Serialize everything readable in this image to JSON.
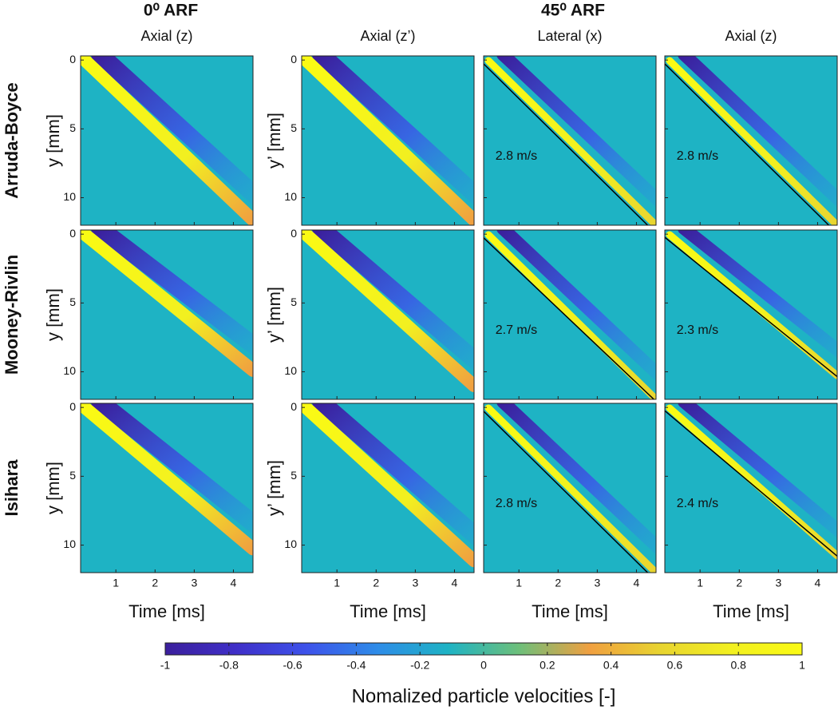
{
  "group_titles": [
    "0⁰ ARF",
    "45⁰ ARF"
  ],
  "row_labels": [
    "Arruda-Boyce",
    "Mooney-Rivlin",
    "Isihara"
  ],
  "chart_data": [
    {
      "type": "heatmap",
      "title": "Axial (z)",
      "ylabel": "y [mm]",
      "xlim": [
        0.1,
        4.5
      ],
      "ylim": [
        -0.3,
        12
      ],
      "y_reversed": true,
      "xticks": [
        1,
        2,
        3,
        4
      ],
      "yticks": [
        0,
        5,
        10
      ],
      "ytick_labels": true
    },
    {
      "type": "heatmap",
      "title": "Axial (z’)",
      "ylabel": "y’ [mm]",
      "xlim": [
        0.1,
        4.5
      ],
      "ylim": [
        -0.3,
        12
      ],
      "y_reversed": true,
      "xticks": [
        1,
        2,
        3,
        4
      ],
      "yticks": [
        0,
        5,
        10
      ],
      "ytick_labels": true
    },
    {
      "type": "heatmap",
      "title": "Lateral (x)",
      "xlim": [
        0.1,
        4.5
      ],
      "ylim": [
        -0.3,
        12
      ],
      "y_reversed": true,
      "xticks": [
        1,
        2,
        3,
        4
      ],
      "yticks": [
        0,
        5,
        10
      ],
      "ytick_labels": false,
      "annotation": {
        "value": 2.8,
        "label": "2.8 m/s"
      }
    },
    {
      "type": "heatmap",
      "title": "Axial (z)",
      "xlim": [
        0.1,
        4.5
      ],
      "ylim": [
        -0.3,
        12
      ],
      "y_reversed": true,
      "xticks": [
        1,
        2,
        3,
        4
      ],
      "yticks": [
        0,
        5,
        10
      ],
      "ytick_labels": false,
      "annotation": {
        "value": 2.8,
        "label": "2.8 m/s"
      }
    },
    {
      "type": "heatmap",
      "ylabel": "y [mm]",
      "xlim": [
        0.1,
        4.5
      ],
      "ylim": [
        -0.3,
        12
      ],
      "y_reversed": true,
      "xticks": [
        1,
        2,
        3,
        4
      ],
      "yticks": [
        0,
        5,
        10
      ],
      "ytick_labels": true
    },
    {
      "type": "heatmap",
      "ylabel": "y’ [mm]",
      "xlim": [
        0.1,
        4.5
      ],
      "ylim": [
        -0.3,
        12
      ],
      "y_reversed": true,
      "xticks": [
        1,
        2,
        3,
        4
      ],
      "yticks": [
        0,
        5,
        10
      ],
      "ytick_labels": true
    },
    {
      "type": "heatmap",
      "xlim": [
        0.1,
        4.5
      ],
      "ylim": [
        -0.3,
        12
      ],
      "y_reversed": true,
      "xticks": [
        1,
        2,
        3,
        4
      ],
      "yticks": [
        0,
        5,
        10
      ],
      "ytick_labels": false,
      "annotation": {
        "value": 2.7,
        "label": "2.7 m/s"
      }
    },
    {
      "type": "heatmap",
      "xlim": [
        0.1,
        4.5
      ],
      "ylim": [
        -0.3,
        12
      ],
      "y_reversed": true,
      "xticks": [
        1,
        2,
        3,
        4
      ],
      "yticks": [
        0,
        5,
        10
      ],
      "ytick_labels": false,
      "annotation": {
        "value": 2.3,
        "label": "2.3 m/s"
      }
    },
    {
      "type": "heatmap",
      "ylabel": "y [mm]",
      "xlabel": "Time [ms]",
      "xlim": [
        0.1,
        4.5
      ],
      "ylim": [
        -0.3,
        12
      ],
      "y_reversed": true,
      "xticks": [
        1,
        2,
        3,
        4
      ],
      "yticks": [
        0,
        5,
        10
      ],
      "ytick_labels": true
    },
    {
      "type": "heatmap",
      "ylabel": "y’ [mm]",
      "xlabel": "Time [ms]",
      "xlim": [
        0.1,
        4.5
      ],
      "ylim": [
        -0.3,
        12
      ],
      "y_reversed": true,
      "xticks": [
        1,
        2,
        3,
        4
      ],
      "yticks": [
        0,
        5,
        10
      ],
      "ytick_labels": true
    },
    {
      "type": "heatmap",
      "xlabel": "Time [ms]",
      "xlim": [
        0.1,
        4.5
      ],
      "ylim": [
        -0.3,
        12
      ],
      "y_reversed": true,
      "xticks": [
        1,
        2,
        3,
        4
      ],
      "yticks": [
        0,
        5,
        10
      ],
      "ytick_labels": false,
      "annotation": {
        "value": 2.8,
        "label": "2.8 m/s"
      }
    },
    {
      "type": "heatmap",
      "xlabel": "Time [ms]",
      "xlim": [
        0.1,
        4.5
      ],
      "ylim": [
        -0.3,
        12
      ],
      "y_reversed": true,
      "xticks": [
        1,
        2,
        3,
        4
      ],
      "yticks": [
        0,
        5,
        10
      ],
      "ytick_labels": false,
      "annotation": {
        "value": 2.4,
        "label": "2.4 m/s"
      }
    }
  ],
  "colorbar": {
    "label": "Nomalized particle velocities [-]",
    "lim": [
      -1,
      1
    ],
    "ticks": [
      -1,
      -0.8,
      -0.6,
      -0.4,
      -0.2,
      0,
      0.2,
      0.4,
      0.6,
      0.8,
      1
    ],
    "colormap": [
      "#3b1f9c",
      "#3f2fc8",
      "#3d52ea",
      "#2e8ce8",
      "#1eb3c4",
      "#6dbf7a",
      "#f0a040",
      "#e8d430",
      "#f2f020",
      "#fafa14"
    ]
  }
}
